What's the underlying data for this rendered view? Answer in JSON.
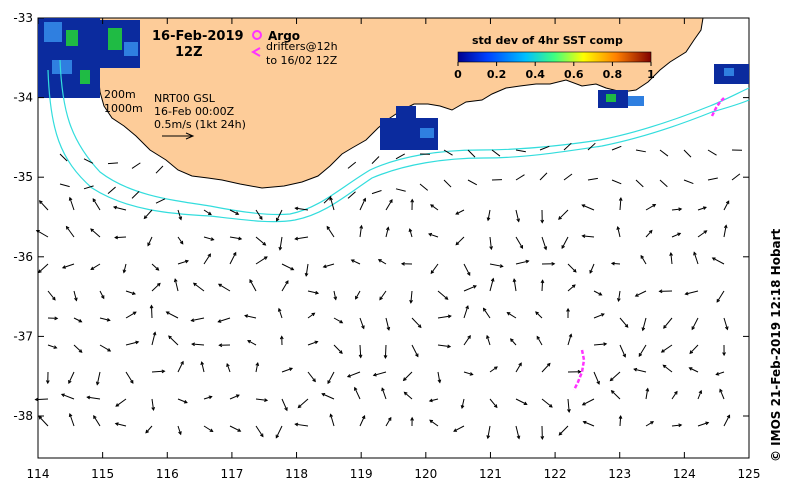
{
  "title": {
    "date": "16-Feb-2019",
    "time": "12Z"
  },
  "legend": {
    "argo_label": "Argo",
    "drifters_label_line1": "drifters@12h",
    "drifters_label_line2": "to 16/02 12Z",
    "marker_color": "#ff33ff"
  },
  "colorbar": {
    "title": "std dev of 4hr SST comp",
    "ticks": [
      "0",
      "0.2",
      "0.4",
      "0.6",
      "0.8",
      "1"
    ]
  },
  "contours": {
    "label_200": "200m",
    "label_1000": "1000m",
    "color": "#33dddd"
  },
  "currents_note": {
    "line1": "NRT00 GSL",
    "line2": "16-Feb 00:00Z",
    "line3": "0.5m/s (1kt 24h)"
  },
  "credit": "© IMOS 21-Feb-2019 12:18 Hobart",
  "axes": {
    "x_ticks": [
      "114",
      "115",
      "116",
      "117",
      "118",
      "119",
      "120",
      "121",
      "122",
      "123",
      "124",
      "125"
    ],
    "y_ticks": [
      "-33",
      "-34",
      "-35",
      "-36",
      "-37",
      "-38"
    ]
  },
  "colors": {
    "land": "#fdcc99",
    "sst_high": "#0b2b9e",
    "sst_mid": "#2f7fe0",
    "sst_green": "#1fbb44"
  }
}
